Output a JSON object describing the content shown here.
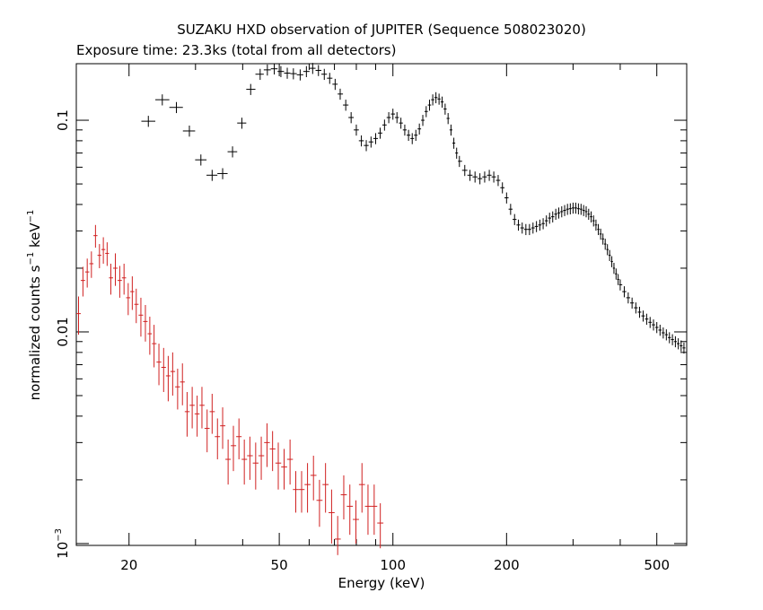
{
  "chart_data": {
    "type": "scatter",
    "title": "SUZAKU HXD observation of JUPITER (Sequence 508023020)",
    "subtitle": "Exposure time: 23.3ks (total from all detectors)",
    "xlabel": "Energy (keV)",
    "ylabel_main": "normalized counts s",
    "ylabel_sup1": "−1",
    "ylabel_mid": " keV",
    "ylabel_sup2": "−1",
    "x_scale": "log",
    "y_scale": "log",
    "xlim": [
      14.5,
      600
    ],
    "ylim": [
      0.00098,
      0.185
    ],
    "grid": false,
    "x_ticks": [
      {
        "value": 20,
        "label": "20"
      },
      {
        "value": 50,
        "label": "50"
      },
      {
        "value": 100,
        "label": "100"
      },
      {
        "value": 200,
        "label": "200"
      },
      {
        "value": 500,
        "label": "500"
      }
    ],
    "y_ticks": [
      {
        "value": 0.001,
        "label_base": "10",
        "label_sup": "−3"
      },
      {
        "value": 0.01,
        "label_base": "0.01",
        "label_sup": ""
      },
      {
        "value": 0.1,
        "label_base": "0.1",
        "label_sup": ""
      }
    ],
    "series": [
      {
        "color": "#d02020",
        "points": [
          [
            14.7,
            0.0122,
            0.0025
          ],
          [
            15.1,
            0.0175,
            0.0028
          ],
          [
            15.5,
            0.0192,
            0.003
          ],
          [
            15.9,
            0.021,
            0.003
          ],
          [
            16.3,
            0.0285,
            0.0035
          ],
          [
            16.7,
            0.023,
            0.003
          ],
          [
            17.1,
            0.0245,
            0.0035
          ],
          [
            17.5,
            0.0235,
            0.003
          ],
          [
            17.9,
            0.018,
            0.003
          ],
          [
            18.4,
            0.02,
            0.0035
          ],
          [
            18.9,
            0.0175,
            0.003
          ],
          [
            19.4,
            0.018,
            0.003
          ],
          [
            19.9,
            0.0145,
            0.0025
          ],
          [
            20.4,
            0.0155,
            0.0028
          ],
          [
            20.9,
            0.0135,
            0.0025
          ],
          [
            21.5,
            0.012,
            0.0025
          ],
          [
            22.1,
            0.0112,
            0.0022
          ],
          [
            22.7,
            0.0098,
            0.002
          ],
          [
            23.3,
            0.0088,
            0.002
          ],
          [
            24,
            0.0072,
            0.0016
          ],
          [
            24.7,
            0.0068,
            0.0016
          ],
          [
            25.4,
            0.0062,
            0.0015
          ],
          [
            26.1,
            0.0065,
            0.0015
          ],
          [
            26.9,
            0.0055,
            0.0012
          ],
          [
            27.7,
            0.0058,
            0.0013
          ],
          [
            28.5,
            0.0042,
            0.001
          ],
          [
            29.4,
            0.0045,
            0.001
          ],
          [
            30.3,
            0.0041,
            0.0009
          ],
          [
            31.2,
            0.0045,
            0.001
          ],
          [
            32.2,
            0.0035,
            0.0008
          ],
          [
            33.2,
            0.0042,
            0.0009
          ],
          [
            34.3,
            0.0032,
            0.0007
          ],
          [
            35.4,
            0.0036,
            0.0008
          ],
          [
            36.6,
            0.0025,
            0.0006
          ],
          [
            37.8,
            0.0029,
            0.0007
          ],
          [
            39.1,
            0.0032,
            0.0007
          ],
          [
            40.4,
            0.0025,
            0.0006
          ],
          [
            41.8,
            0.0026,
            0.0006
          ],
          [
            43.3,
            0.0024,
            0.0006
          ],
          [
            44.8,
            0.0026,
            0.0006
          ],
          [
            46.4,
            0.003,
            0.0007
          ],
          [
            48,
            0.0028,
            0.0006
          ],
          [
            49.7,
            0.0024,
            0.0006
          ],
          [
            51.5,
            0.0023,
            0.0005
          ],
          [
            53.4,
            0.0025,
            0.0006
          ],
          [
            55.3,
            0.0018,
            0.0004
          ],
          [
            57.3,
            0.0018,
            0.0004
          ],
          [
            59.4,
            0.0019,
            0.0005
          ],
          [
            61.6,
            0.0021,
            0.0005
          ],
          [
            63.9,
            0.0016,
            0.0004
          ],
          [
            66.3,
            0.0019,
            0.0005
          ],
          [
            68.8,
            0.0014,
            0.0004
          ],
          [
            71.4,
            0.00105,
            0.0003
          ],
          [
            74.1,
            0.0017,
            0.0004
          ],
          [
            76.9,
            0.0015,
            0.0004
          ],
          [
            79.8,
            0.0013,
            0.0003
          ],
          [
            82.8,
            0.0019,
            0.0005
          ],
          [
            85.9,
            0.0015,
            0.0004
          ],
          [
            89.2,
            0.0015,
            0.0004
          ],
          [
            92.6,
            0.00125,
            0.0003
          ]
        ]
      },
      {
        "color": "#000000",
        "points": [
          [
            22.5,
            0.099
          ],
          [
            24.5,
            0.125
          ],
          [
            26.7,
            0.115
          ],
          [
            28.9,
            0.089
          ],
          [
            31.0,
            0.065
          ],
          [
            33.2,
            0.055
          ],
          [
            35.4,
            0.056
          ],
          [
            37.6,
            0.071
          ],
          [
            39.8,
            0.097
          ],
          [
            42.0,
            0.14
          ],
          [
            44.5,
            0.165
          ],
          [
            46.5,
            0.173
          ],
          [
            48.5,
            0.175
          ],
          [
            50.5,
            0.17
          ],
          [
            52.5,
            0.167
          ],
          [
            54.5,
            0.166
          ],
          [
            56.8,
            0.164
          ],
          [
            59.0,
            0.17
          ],
          [
            61.3,
            0.176
          ],
          [
            63.5,
            0.172
          ],
          [
            65.8,
            0.165
          ],
          [
            68.0,
            0.158
          ],
          [
            70.3,
            0.148
          ],
          [
            72.5,
            0.133
          ],
          [
            75.0,
            0.118
          ],
          [
            77.5,
            0.103
          ],
          [
            80.0,
            0.09
          ],
          [
            82.5,
            0.08
          ],
          [
            85.0,
            0.076
          ],
          [
            87.5,
            0.079
          ],
          [
            90.0,
            0.082
          ],
          [
            92.5,
            0.087
          ],
          [
            95.0,
            0.095
          ],
          [
            97.5,
            0.103
          ],
          [
            100.0,
            0.107
          ],
          [
            102.5,
            0.103
          ],
          [
            105.0,
            0.097
          ],
          [
            107.5,
            0.09
          ],
          [
            110.0,
            0.085
          ],
          [
            112.5,
            0.082
          ],
          [
            115.0,
            0.085
          ],
          [
            117.5,
            0.091
          ],
          [
            120.0,
            0.1
          ],
          [
            122.5,
            0.11
          ],
          [
            125.0,
            0.118
          ],
          [
            127.5,
            0.125
          ],
          [
            130.0,
            0.128
          ],
          [
            132.5,
            0.126
          ],
          [
            135.0,
            0.122
          ],
          [
            137.5,
            0.113
          ],
          [
            140.0,
            0.102
          ],
          [
            142.5,
            0.09
          ],
          [
            145.0,
            0.078
          ],
          [
            147.5,
            0.07
          ],
          [
            150.0,
            0.064
          ],
          [
            155.0,
            0.058
          ],
          [
            160.0,
            0.055
          ],
          [
            165.0,
            0.054
          ],
          [
            170.0,
            0.053
          ],
          [
            175.0,
            0.054
          ],
          [
            180.0,
            0.055
          ],
          [
            185.0,
            0.054
          ],
          [
            190.0,
            0.052
          ],
          [
            195.0,
            0.048
          ],
          [
            200.0,
            0.043
          ],
          [
            205.0,
            0.038
          ],
          [
            210.0,
            0.034
          ],
          [
            215.0,
            0.032
          ],
          [
            220.0,
            0.031
          ],
          [
            225.0,
            0.0305
          ],
          [
            230.0,
            0.0305
          ],
          [
            235.0,
            0.031
          ],
          [
            240.0,
            0.0315
          ],
          [
            245.0,
            0.032
          ],
          [
            250.0,
            0.0325
          ],
          [
            255.0,
            0.0335
          ],
          [
            260.0,
            0.0345
          ],
          [
            265.0,
            0.035
          ],
          [
            270.0,
            0.036
          ],
          [
            275.0,
            0.0365
          ],
          [
            280.0,
            0.037
          ],
          [
            285.0,
            0.0375
          ],
          [
            290.0,
            0.038
          ],
          [
            295.0,
            0.0382
          ],
          [
            300.0,
            0.0385
          ],
          [
            305.0,
            0.0385
          ],
          [
            310.0,
            0.0382
          ],
          [
            315.0,
            0.038
          ],
          [
            320.0,
            0.0375
          ],
          [
            325.0,
            0.037
          ],
          [
            330.0,
            0.036
          ],
          [
            335.0,
            0.035
          ],
          [
            340.0,
            0.0335
          ],
          [
            345.0,
            0.032
          ],
          [
            350.0,
            0.0305
          ],
          [
            355.0,
            0.029
          ],
          [
            360.0,
            0.0275
          ],
          [
            365.0,
            0.026
          ],
          [
            370.0,
            0.0245
          ],
          [
            375.0,
            0.023
          ],
          [
            380.0,
            0.0215
          ],
          [
            385.0,
            0.02
          ],
          [
            390.0,
            0.0188
          ],
          [
            395.0,
            0.0177
          ],
          [
            400.0,
            0.0167
          ],
          [
            410.0,
            0.0155
          ],
          [
            420.0,
            0.0145
          ],
          [
            430.0,
            0.0137
          ],
          [
            440.0,
            0.013
          ],
          [
            450.0,
            0.0124
          ],
          [
            460.0,
            0.0119
          ],
          [
            470.0,
            0.0115
          ],
          [
            480.0,
            0.0111
          ],
          [
            490.0,
            0.0108
          ],
          [
            500.0,
            0.0105
          ],
          [
            510.0,
            0.0102
          ],
          [
            520.0,
            0.0099
          ],
          [
            530.0,
            0.0097
          ],
          [
            540.0,
            0.0094
          ],
          [
            550.0,
            0.0092
          ],
          [
            560.0,
            0.009
          ],
          [
            570.0,
            0.0088
          ],
          [
            580.0,
            0.0086
          ],
          [
            590.0,
            0.0084
          ]
        ]
      }
    ]
  }
}
